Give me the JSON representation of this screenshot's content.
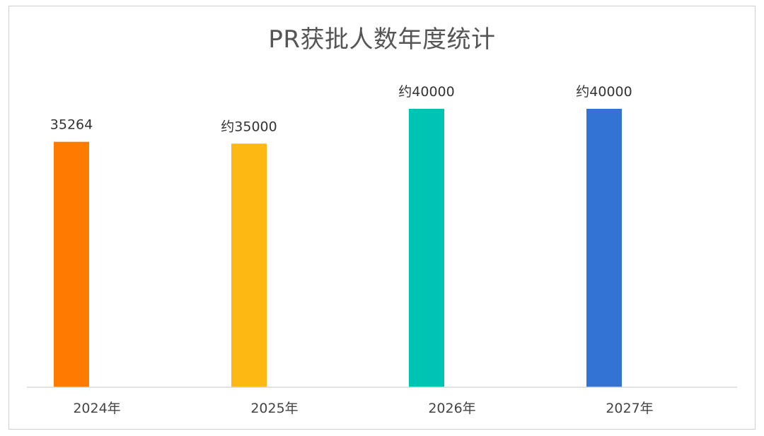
{
  "chart_data": {
    "type": "bar",
    "title": "PR获批人数年度统计",
    "xlabel": "",
    "ylabel": "",
    "categories": [
      "2024年",
      "2025年",
      "2026年",
      "2027年"
    ],
    "values": [
      35264,
      35000,
      40000,
      40000
    ],
    "data_labels": [
      "35264",
      "约35000",
      "约40000",
      "约40000"
    ],
    "colors": [
      "#FF7B00",
      "#FDB813",
      "#00C4B3",
      "#3373D4"
    ],
    "ylim": [
      0,
      40000
    ],
    "grid": false,
    "legend": "none"
  }
}
